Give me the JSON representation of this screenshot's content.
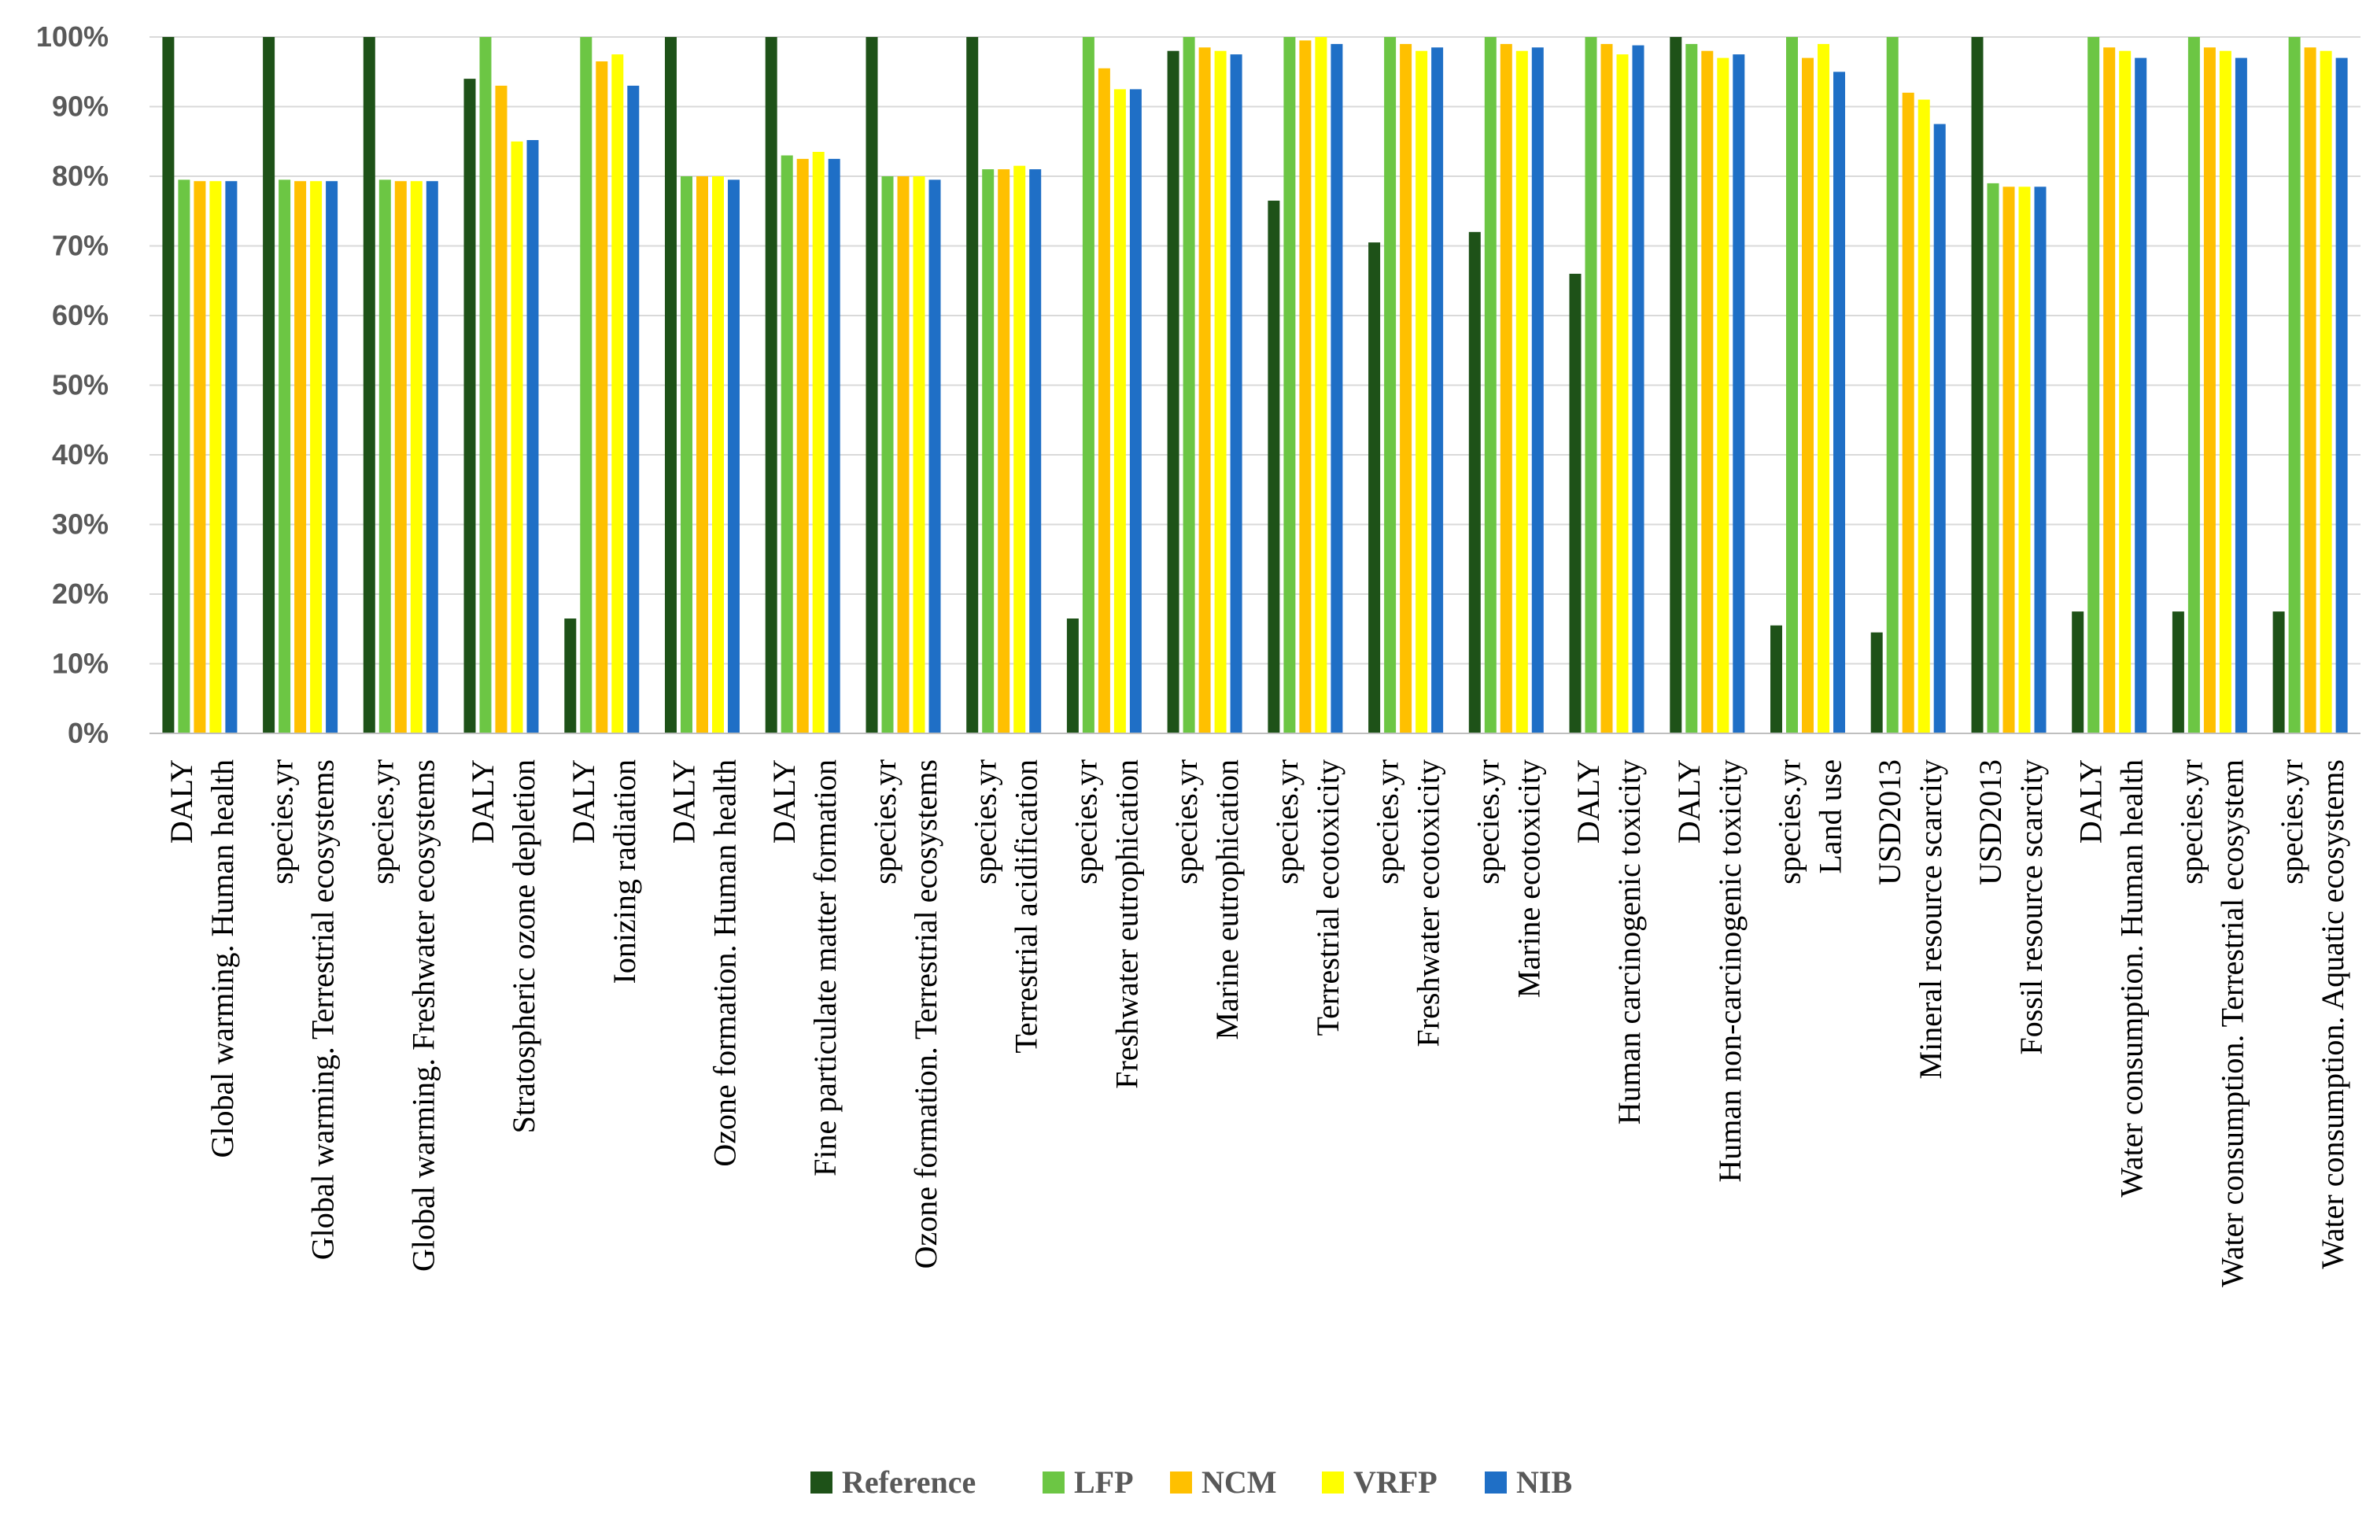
{
  "chart_data": {
    "type": "bar",
    "title": "",
    "xlabel": "",
    "ylabel": "",
    "ylim": [
      0,
      100
    ],
    "y_ticks": [
      "0%",
      "10%",
      "20%",
      "30%",
      "40%",
      "50%",
      "60%",
      "70%",
      "80%",
      "90%",
      "100%"
    ],
    "grid": true,
    "legend_position": "bottom",
    "categories": [
      {
        "unit": "DALY",
        "name": "Global warming. Human health"
      },
      {
        "unit": "species.yr",
        "name": "Global warming. Terrestrial ecosystems"
      },
      {
        "unit": "species.yr",
        "name": "Global warming. Freshwater ecosystems"
      },
      {
        "unit": "DALY",
        "name": "Stratospheric ozone depletion"
      },
      {
        "unit": "DALY",
        "name": "Ionizing radiation"
      },
      {
        "unit": "DALY",
        "name": "Ozone formation. Human health"
      },
      {
        "unit": "DALY",
        "name": "Fine particulate matter formation"
      },
      {
        "unit": "species.yr",
        "name": "Ozone formation. Terrestrial ecosystems"
      },
      {
        "unit": "species.yr",
        "name": "Terrestrial acidification"
      },
      {
        "unit": "species.yr",
        "name": "Freshwater eutrophication"
      },
      {
        "unit": "species.yr",
        "name": "Marine eutrophication"
      },
      {
        "unit": "species.yr",
        "name": "Terrestrial ecotoxicity"
      },
      {
        "unit": "species.yr",
        "name": "Freshwater ecotoxicity"
      },
      {
        "unit": "species.yr",
        "name": "Marine ecotoxicity"
      },
      {
        "unit": "DALY",
        "name": "Human carcinogenic toxicity"
      },
      {
        "unit": "DALY",
        "name": "Human non-carcinogenic toxicity"
      },
      {
        "unit": "species.yr",
        "name": "Land use"
      },
      {
        "unit": "USD2013",
        "name": "Mineral resource scarcity"
      },
      {
        "unit": "USD2013",
        "name": "Fossil resource scarcity"
      },
      {
        "unit": "DALY",
        "name": "Water consumption. Human health"
      },
      {
        "unit": "species.yr",
        "name": "Water consumption. Terrestrial ecosystem"
      },
      {
        "unit": "species.yr",
        "name": "Water consumption. Aquatic ecosystems"
      }
    ],
    "series": [
      {
        "name": "Reference",
        "color": "#1e5218",
        "values": [
          100,
          100,
          100,
          94,
          16.5,
          100,
          100,
          100,
          100,
          16.5,
          98,
          76.5,
          70.5,
          72,
          66,
          100,
          15.5,
          14.5,
          100,
          17.5,
          17.5,
          17.5
        ]
      },
      {
        "name": "LFP",
        "color": "#6cc644",
        "values": [
          79.5,
          79.5,
          79.5,
          100,
          100,
          80,
          83,
          80,
          81,
          100,
          100,
          100,
          100,
          100,
          100,
          99,
          100,
          100,
          79,
          100,
          100,
          100
        ]
      },
      {
        "name": "NCM",
        "color": "#ffc000",
        "values": [
          79.3,
          79.3,
          79.3,
          93,
          96.5,
          80,
          82.5,
          80,
          81,
          95.5,
          98.5,
          99.5,
          99,
          99,
          99,
          98,
          97,
          92,
          78.5,
          98.5,
          98.5,
          98.5
        ]
      },
      {
        "name": "VRFP",
        "color": "#ffff00",
        "values": [
          79.3,
          79.3,
          79.3,
          85,
          97.5,
          80,
          83.5,
          80,
          81.5,
          92.5,
          98,
          100,
          98,
          98,
          97.5,
          97,
          99,
          91,
          78.5,
          98,
          98,
          98
        ]
      },
      {
        "name": "NIB",
        "color": "#1f6fc6",
        "values": [
          79.3,
          79.3,
          79.3,
          85.2,
          93,
          79.5,
          82.5,
          79.5,
          81,
          92.5,
          97.5,
          99,
          98.5,
          98.5,
          98.8,
          97.5,
          95,
          87.5,
          78.5,
          97,
          97,
          97
        ]
      }
    ]
  }
}
